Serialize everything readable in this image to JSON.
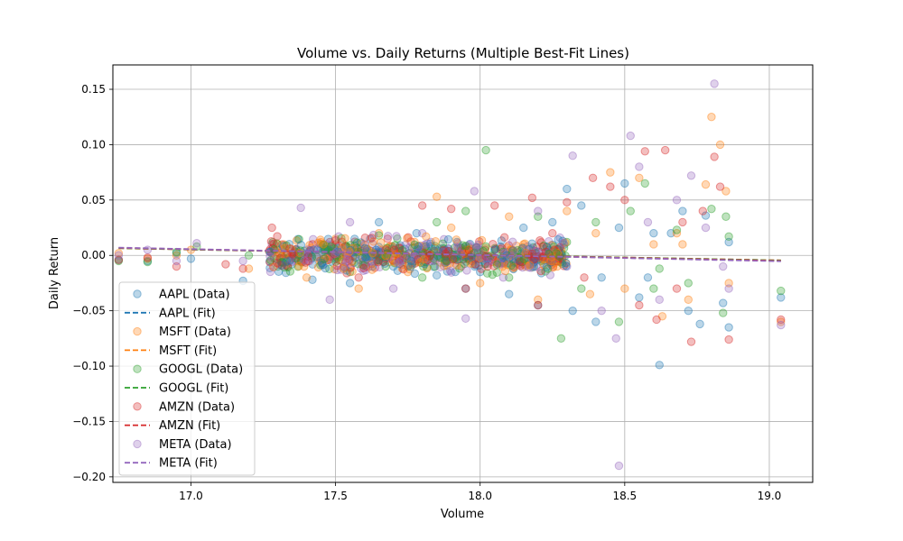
{
  "chart_data": {
    "type": "scatter",
    "title": "Volume vs. Daily Returns (Multiple Best-Fit Lines)",
    "xlabel": "Volume",
    "ylabel": "Daily Return",
    "xlim": [
      16.73,
      19.15
    ],
    "ylim": [
      -0.205,
      0.172
    ],
    "xticks": [
      17.0,
      17.5,
      18.0,
      18.5,
      19.0
    ],
    "xtick_labels": [
      "17.0",
      "17.5",
      "18.0",
      "18.5",
      "19.0"
    ],
    "yticks": [
      -0.2,
      -0.15,
      -0.1,
      -0.05,
      0.0,
      0.05,
      0.1,
      0.15
    ],
    "ytick_labels": [
      "−0.20",
      "−0.15",
      "−0.10",
      "−0.05",
      "0.00",
      "0.05",
      "0.10",
      "0.15"
    ],
    "grid": true,
    "legend_position": "bottom-left",
    "legend": [
      {
        "label": "AAPL (Data)",
        "kind": "scatter",
        "color": "#1f77b4"
      },
      {
        "label": "AAPL (Fit)",
        "kind": "line",
        "color": "#1f77b4"
      },
      {
        "label": "MSFT (Data)",
        "kind": "scatter",
        "color": "#ff7f0e"
      },
      {
        "label": "MSFT (Fit)",
        "kind": "line",
        "color": "#ff7f0e"
      },
      {
        "label": "GOOGL (Data)",
        "kind": "scatter",
        "color": "#2ca02c"
      },
      {
        "label": "GOOGL (Fit)",
        "kind": "line",
        "color": "#2ca02c"
      },
      {
        "label": "AMZN (Data)",
        "kind": "scatter",
        "color": "#d62728"
      },
      {
        "label": "AMZN (Fit)",
        "kind": "line",
        "color": "#d62728"
      },
      {
        "label": "META (Data)",
        "kind": "scatter",
        "color": "#9467bd"
      },
      {
        "label": "META (Fit)",
        "kind": "line",
        "color": "#9467bd"
      }
    ],
    "series": [
      {
        "name": "AAPL (Data)",
        "color": "#1f77b4",
        "points": [
          [
            16.75,
            -0.004
          ],
          [
            16.85,
            -0.005
          ],
          [
            16.95,
            0.002
          ],
          [
            17.0,
            -0.003
          ],
          [
            17.18,
            -0.023
          ],
          [
            17.3,
            0.005
          ],
          [
            17.35,
            -0.008
          ],
          [
            17.42,
            -0.022
          ],
          [
            17.5,
            0.01
          ],
          [
            17.55,
            -0.025
          ],
          [
            17.62,
            0.015
          ],
          [
            17.7,
            -0.01
          ],
          [
            17.78,
            0.02
          ],
          [
            17.85,
            -0.018
          ],
          [
            17.92,
            0.012
          ],
          [
            18.0,
            -0.015
          ],
          [
            18.05,
            0.005
          ],
          [
            18.1,
            -0.035
          ],
          [
            18.15,
            0.025
          ],
          [
            18.2,
            -0.045
          ],
          [
            18.25,
            0.03
          ],
          [
            18.32,
            -0.05
          ],
          [
            18.35,
            0.045
          ],
          [
            18.42,
            -0.02
          ],
          [
            18.48,
            0.025
          ],
          [
            18.5,
            0.065
          ],
          [
            18.55,
            -0.038
          ],
          [
            18.6,
            0.02
          ],
          [
            18.62,
            -0.099
          ],
          [
            18.66,
            0.02
          ],
          [
            18.7,
            0.04
          ],
          [
            18.72,
            -0.05
          ],
          [
            18.76,
            -0.062
          ],
          [
            18.78,
            0.036
          ],
          [
            18.84,
            -0.043
          ],
          [
            18.86,
            -0.065
          ],
          [
            18.86,
            0.012
          ],
          [
            19.04,
            -0.038
          ],
          [
            18.3,
            0.06
          ],
          [
            17.65,
            0.03
          ],
          [
            18.4,
            -0.06
          ],
          [
            17.95,
            -0.03
          ],
          [
            18.58,
            -0.02
          ]
        ]
      },
      {
        "name": "MSFT (Data)",
        "color": "#ff7f0e",
        "points": [
          [
            16.75,
            0.002
          ],
          [
            16.85,
            -0.003
          ],
          [
            16.95,
            0.0
          ],
          [
            17.0,
            0.005
          ],
          [
            17.2,
            -0.012
          ],
          [
            17.3,
            0.01
          ],
          [
            17.4,
            -0.02
          ],
          [
            17.5,
            0.015
          ],
          [
            17.58,
            -0.03
          ],
          [
            17.65,
            0.02
          ],
          [
            17.75,
            -0.015
          ],
          [
            17.85,
            0.053
          ],
          [
            17.9,
            0.025
          ],
          [
            18.0,
            -0.025
          ],
          [
            18.1,
            0.035
          ],
          [
            18.2,
            -0.04
          ],
          [
            18.3,
            0.04
          ],
          [
            18.38,
            -0.035
          ],
          [
            18.45,
            0.075
          ],
          [
            18.5,
            -0.03
          ],
          [
            18.55,
            0.07
          ],
          [
            18.6,
            0.01
          ],
          [
            18.63,
            -0.055
          ],
          [
            18.68,
            0.02
          ],
          [
            18.72,
            -0.04
          ],
          [
            18.78,
            0.064
          ],
          [
            18.8,
            0.125
          ],
          [
            18.83,
            0.1
          ],
          [
            18.85,
            0.058
          ],
          [
            18.86,
            -0.025
          ],
          [
            19.04,
            -0.06
          ],
          [
            18.4,
            0.02
          ],
          [
            17.7,
            -0.005
          ],
          [
            18.15,
            0.01
          ],
          [
            18.7,
            0.01
          ]
        ]
      },
      {
        "name": "GOOGL (Data)",
        "color": "#2ca02c",
        "points": [
          [
            16.75,
            -0.005
          ],
          [
            16.85,
            -0.006
          ],
          [
            16.95,
            0.003
          ],
          [
            17.02,
            0.008
          ],
          [
            17.2,
            0.0
          ],
          [
            17.3,
            -0.01
          ],
          [
            17.45,
            0.01
          ],
          [
            17.55,
            -0.015
          ],
          [
            17.65,
            0.018
          ],
          [
            17.75,
            -0.01
          ],
          [
            17.85,
            0.03
          ],
          [
            17.95,
            0.04
          ],
          [
            18.02,
            0.095
          ],
          [
            18.1,
            -0.02
          ],
          [
            18.2,
            0.035
          ],
          [
            18.28,
            -0.075
          ],
          [
            18.35,
            -0.03
          ],
          [
            18.4,
            0.03
          ],
          [
            18.48,
            -0.06
          ],
          [
            18.52,
            0.04
          ],
          [
            18.57,
            0.065
          ],
          [
            18.62,
            -0.012
          ],
          [
            18.68,
            0.023
          ],
          [
            18.72,
            -0.025
          ],
          [
            18.8,
            0.042
          ],
          [
            18.84,
            -0.052
          ],
          [
            18.86,
            0.017
          ],
          [
            18.85,
            0.035
          ],
          [
            19.04,
            -0.032
          ],
          [
            18.3,
            0.012
          ],
          [
            17.8,
            -0.02
          ],
          [
            18.6,
            -0.03
          ]
        ]
      },
      {
        "name": "AMZN (Data)",
        "color": "#d62728",
        "points": [
          [
            16.75,
            -0.004
          ],
          [
            16.85,
            -0.002
          ],
          [
            16.95,
            -0.01
          ],
          [
            17.12,
            -0.008
          ],
          [
            17.18,
            -0.012
          ],
          [
            17.28,
            0.025
          ],
          [
            17.38,
            -0.005
          ],
          [
            17.48,
            0.012
          ],
          [
            17.58,
            -0.02
          ],
          [
            17.68,
            0.015
          ],
          [
            17.8,
            0.045
          ],
          [
            17.9,
            0.042
          ],
          [
            18.05,
            0.045
          ],
          [
            18.18,
            0.052
          ],
          [
            18.2,
            -0.045
          ],
          [
            18.3,
            0.048
          ],
          [
            18.36,
            -0.02
          ],
          [
            18.39,
            0.07
          ],
          [
            18.45,
            0.062
          ],
          [
            18.5,
            0.05
          ],
          [
            18.55,
            -0.045
          ],
          [
            18.57,
            0.094
          ],
          [
            18.61,
            -0.058
          ],
          [
            18.64,
            0.095
          ],
          [
            18.68,
            -0.03
          ],
          [
            18.73,
            -0.078
          ],
          [
            18.77,
            0.04
          ],
          [
            18.81,
            0.089
          ],
          [
            18.83,
            0.062
          ],
          [
            18.86,
            -0.076
          ],
          [
            19.04,
            -0.058
          ],
          [
            18.25,
            0.02
          ],
          [
            17.95,
            -0.03
          ],
          [
            18.7,
            0.03
          ]
        ]
      },
      {
        "name": "META (Data)",
        "color": "#9467bd",
        "points": [
          [
            16.75,
            0.0
          ],
          [
            16.85,
            0.005
          ],
          [
            16.95,
            -0.005
          ],
          [
            17.02,
            0.011
          ],
          [
            17.18,
            -0.005
          ],
          [
            17.28,
            0.01
          ],
          [
            17.38,
            0.043
          ],
          [
            17.48,
            -0.04
          ],
          [
            17.55,
            0.03
          ],
          [
            17.7,
            -0.03
          ],
          [
            17.8,
            0.02
          ],
          [
            17.95,
            -0.057
          ],
          [
            17.98,
            0.058
          ],
          [
            18.08,
            -0.02
          ],
          [
            18.2,
            0.04
          ],
          [
            18.32,
            0.09
          ],
          [
            18.42,
            -0.05
          ],
          [
            18.47,
            -0.075
          ],
          [
            18.48,
            -0.19
          ],
          [
            18.52,
            0.108
          ],
          [
            18.55,
            0.08
          ],
          [
            18.58,
            0.03
          ],
          [
            18.62,
            -0.04
          ],
          [
            18.68,
            0.05
          ],
          [
            18.73,
            0.072
          ],
          [
            18.78,
            0.025
          ],
          [
            18.81,
            0.155
          ],
          [
            18.84,
            -0.01
          ],
          [
            18.86,
            -0.03
          ],
          [
            19.04,
            -0.063
          ],
          [
            18.3,
            -0.01
          ],
          [
            17.65,
            0.005
          ]
        ]
      },
      {
        "name": "Dense cluster (all tickers)",
        "color": "#9467bd",
        "cluster": {
          "x_from": 17.27,
          "x_to": 18.3,
          "y_center": 0.0,
          "y_spread": 0.024,
          "count": 900
        }
      }
    ],
    "fit_lines": [
      {
        "name": "AAPL (Fit)",
        "color": "#1f77b4",
        "x": [
          16.75,
          19.04
        ],
        "y": [
          0.0065,
          -0.0045
        ]
      },
      {
        "name": "MSFT (Fit)",
        "color": "#ff7f0e",
        "x": [
          16.75,
          19.04
        ],
        "y": [
          0.0065,
          -0.0045
        ]
      },
      {
        "name": "GOOGL (Fit)",
        "color": "#2ca02c",
        "x": [
          16.75,
          19.04
        ],
        "y": [
          0.0066,
          -0.0047
        ]
      },
      {
        "name": "AMZN (Fit)",
        "color": "#d62728",
        "x": [
          16.75,
          19.04
        ],
        "y": [
          0.0068,
          -0.005
        ]
      },
      {
        "name": "META (Fit)",
        "color": "#9467bd",
        "x": [
          16.75,
          19.04
        ],
        "y": [
          0.007,
          -0.0053
        ]
      }
    ]
  }
}
